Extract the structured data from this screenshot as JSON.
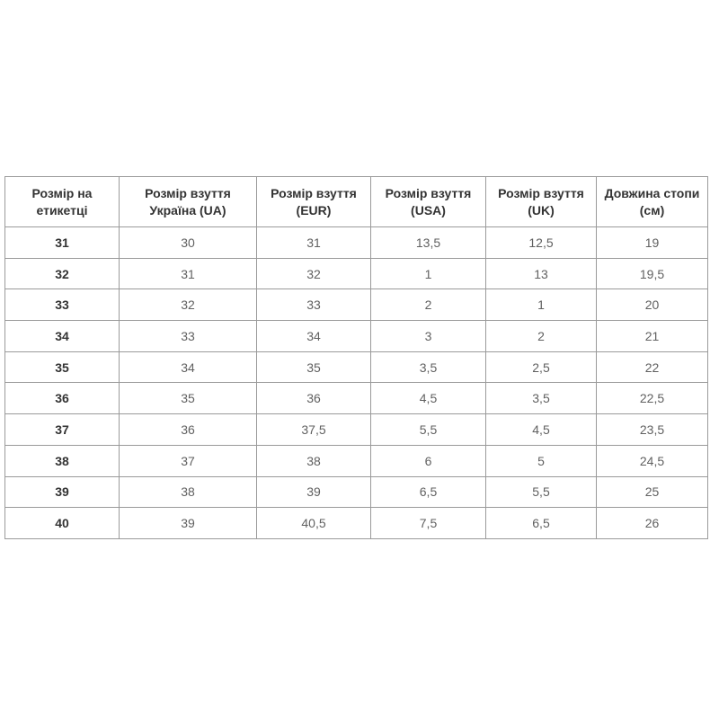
{
  "chart_data": {
    "type": "table",
    "title": "",
    "columns": [
      "Розмір на етикетці",
      "Розмір взуття Україна (UA)",
      "Розмір взуття (EUR)",
      "Розмір взуття (USA)",
      "Розмір взуття (UK)",
      "Довжина стопи (см)"
    ],
    "rows": [
      [
        "31",
        "30",
        "31",
        "13,5",
        "12,5",
        "19"
      ],
      [
        "32",
        "31",
        "32",
        "1",
        "13",
        "19,5"
      ],
      [
        "33",
        "32",
        "33",
        "2",
        "1",
        "20"
      ],
      [
        "34",
        "33",
        "34",
        "3",
        "2",
        "21"
      ],
      [
        "35",
        "34",
        "35",
        "3,5",
        "2,5",
        "22"
      ],
      [
        "36",
        "35",
        "36",
        "4,5",
        "3,5",
        "22,5"
      ],
      [
        "37",
        "36",
        "37,5",
        "5,5",
        "4,5",
        "23,5"
      ],
      [
        "38",
        "37",
        "38",
        "6",
        "5",
        "24,5"
      ],
      [
        "39",
        "38",
        "39",
        "6,5",
        "5,5",
        "25"
      ],
      [
        "40",
        "39",
        "40,5",
        "7,5",
        "6,5",
        "26"
      ]
    ],
    "layout": {
      "decimal_separator": ",",
      "grid": true,
      "first_column_bold": true
    }
  },
  "colors": {
    "page_background": "#ffffff",
    "border": "#9a9a9a",
    "outer_border": "#8c8c8c",
    "header_text": "#333333",
    "cell_text": "#616161"
  }
}
